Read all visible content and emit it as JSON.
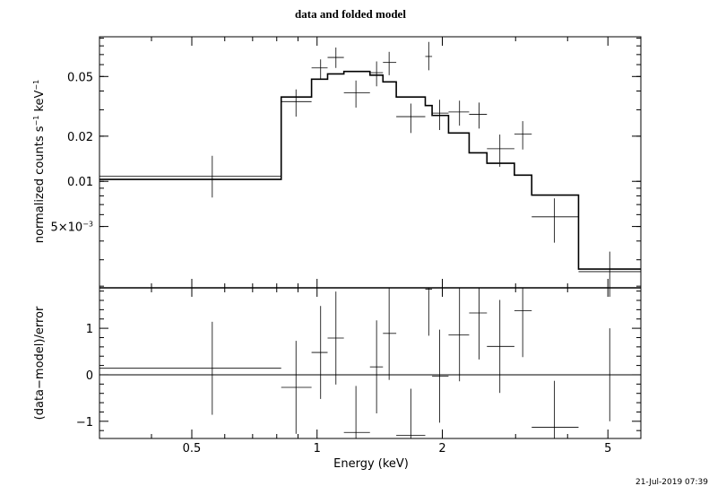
{
  "chart_data": {
    "type": "line",
    "title": "data and folded model",
    "timestamp": "21-Jul-2019 07:39",
    "xlabel": "Energy (keV)",
    "xscale": "log",
    "xlim": [
      0.3,
      6.0
    ],
    "x_ticks": [
      {
        "value": 0.5,
        "label": "0.5"
      },
      {
        "value": 1,
        "label": "1"
      },
      {
        "value": 2,
        "label": "2"
      },
      {
        "value": 5,
        "label": "5"
      }
    ],
    "top_panel": {
      "ylabel": "normalized counts s",
      "ylabel_sup1": "−1",
      "ylabel_mid": " keV",
      "ylabel_sup2": "−1",
      "yscale": "log",
      "ylim": [
        0.00195,
        0.092
      ],
      "y_ticks": [
        {
          "value": 0.005,
          "label": "5×10",
          "sup": "−3"
        },
        {
          "value": 0.01,
          "label": "0.01",
          "sup": ""
        },
        {
          "value": 0.02,
          "label": "0.02",
          "sup": ""
        },
        {
          "value": 0.05,
          "label": "0.05",
          "sup": ""
        }
      ],
      "data": [
        {
          "xlo": 0.3,
          "xhi": 0.82,
          "x": 0.56,
          "y": 0.0108,
          "ylo": 0.0078,
          "yhi": 0.0148
        },
        {
          "xlo": 0.82,
          "xhi": 0.97,
          "x": 0.89,
          "y": 0.034,
          "ylo": 0.027,
          "yhi": 0.041
        },
        {
          "xlo": 0.97,
          "xhi": 1.06,
          "x": 1.02,
          "y": 0.057,
          "ylo": 0.048,
          "yhi": 0.065
        },
        {
          "xlo": 1.06,
          "xhi": 1.16,
          "x": 1.11,
          "y": 0.067,
          "ylo": 0.057,
          "yhi": 0.078
        },
        {
          "xlo": 1.16,
          "xhi": 1.34,
          "x": 1.24,
          "y": 0.039,
          "ylo": 0.031,
          "yhi": 0.047
        },
        {
          "xlo": 1.34,
          "xhi": 1.44,
          "x": 1.39,
          "y": 0.053,
          "ylo": 0.043,
          "yhi": 0.063
        },
        {
          "xlo": 1.44,
          "xhi": 1.55,
          "x": 1.49,
          "y": 0.062,
          "ylo": 0.051,
          "yhi": 0.073
        },
        {
          "xlo": 1.55,
          "xhi": 1.82,
          "x": 1.68,
          "y": 0.027,
          "ylo": 0.021,
          "yhi": 0.033
        },
        {
          "xlo": 1.82,
          "xhi": 1.89,
          "x": 1.855,
          "y": 0.068,
          "ylo": 0.055,
          "yhi": 0.085
        },
        {
          "xlo": 1.89,
          "xhi": 2.07,
          "x": 1.97,
          "y": 0.0285,
          "ylo": 0.022,
          "yhi": 0.035
        },
        {
          "xlo": 2.07,
          "xhi": 2.32,
          "x": 2.2,
          "y": 0.029,
          "ylo": 0.0235,
          "yhi": 0.0345
        },
        {
          "xlo": 2.32,
          "xhi": 2.56,
          "x": 2.45,
          "y": 0.028,
          "ylo": 0.0225,
          "yhi": 0.0335
        },
        {
          "xlo": 2.56,
          "xhi": 2.98,
          "x": 2.75,
          "y": 0.0165,
          "ylo": 0.0125,
          "yhi": 0.0205
        },
        {
          "xlo": 2.98,
          "xhi": 3.28,
          "x": 3.12,
          "y": 0.0207,
          "ylo": 0.0163,
          "yhi": 0.0252
        },
        {
          "xlo": 3.28,
          "xhi": 4.25,
          "x": 3.72,
          "y": 0.0058,
          "ylo": 0.0039,
          "yhi": 0.0077
        },
        {
          "xlo": 4.25,
          "xhi": 6.0,
          "x": 5.05,
          "y": 0.0025,
          "ylo": 0.0017,
          "yhi": 0.0034
        }
      ],
      "model": [
        {
          "xlo": 0.3,
          "xhi": 0.82,
          "y": 0.0103
        },
        {
          "xlo": 0.82,
          "xhi": 0.97,
          "y": 0.0365
        },
        {
          "xlo": 0.97,
          "xhi": 1.06,
          "y": 0.048
        },
        {
          "xlo": 1.06,
          "xhi": 1.16,
          "y": 0.052
        },
        {
          "xlo": 1.16,
          "xhi": 1.34,
          "y": 0.054
        },
        {
          "xlo": 1.34,
          "xhi": 1.44,
          "y": 0.051
        },
        {
          "xlo": 1.44,
          "xhi": 1.55,
          "y": 0.046
        },
        {
          "xlo": 1.55,
          "xhi": 1.82,
          "y": 0.0365
        },
        {
          "xlo": 1.82,
          "xhi": 1.89,
          "y": 0.032
        },
        {
          "xlo": 1.89,
          "xhi": 2.07,
          "y": 0.0275
        },
        {
          "xlo": 2.07,
          "xhi": 2.32,
          "y": 0.021
        },
        {
          "xlo": 2.32,
          "xhi": 2.56,
          "y": 0.0155
        },
        {
          "xlo": 2.56,
          "xhi": 2.98,
          "y": 0.0132
        },
        {
          "xlo": 2.98,
          "xhi": 3.28,
          "y": 0.011
        },
        {
          "xlo": 3.28,
          "xhi": 4.25,
          "y": 0.0081
        },
        {
          "xlo": 4.25,
          "xhi": 6.0,
          "y": 0.0026
        }
      ]
    },
    "bottom_panel": {
      "ylabel": "(data−model)/error",
      "ylim": [
        -1.37,
        1.87
      ],
      "y_ticks": [
        {
          "value": -1,
          "label": "−1"
        },
        {
          "value": 0,
          "label": "0"
        },
        {
          "value": 1,
          "label": "1"
        }
      ],
      "zero_line": 0,
      "residuals": [
        {
          "xlo": 0.3,
          "xhi": 0.82,
          "x": 0.56,
          "y": 0.14,
          "err": 1.0
        },
        {
          "xlo": 0.82,
          "xhi": 0.97,
          "x": 0.89,
          "y": -0.27,
          "err": 1.0
        },
        {
          "xlo": 0.97,
          "xhi": 1.06,
          "x": 1.02,
          "y": 0.48,
          "err": 1.0
        },
        {
          "xlo": 1.06,
          "xhi": 1.16,
          "x": 1.11,
          "y": 0.79,
          "err": 1.0
        },
        {
          "xlo": 1.16,
          "xhi": 1.34,
          "x": 1.24,
          "y": -1.24,
          "err": 1.0
        },
        {
          "xlo": 1.34,
          "xhi": 1.44,
          "x": 1.39,
          "y": 0.17,
          "err": 1.0
        },
        {
          "xlo": 1.44,
          "xhi": 1.55,
          "x": 1.49,
          "y": 0.89,
          "err": 1.0
        },
        {
          "xlo": 1.55,
          "xhi": 1.82,
          "x": 1.68,
          "y": -1.3,
          "err": 1.0
        },
        {
          "xlo": 1.82,
          "xhi": 1.89,
          "x": 1.855,
          "y": 1.84,
          "err": 1.0
        },
        {
          "xlo": 1.89,
          "xhi": 2.07,
          "x": 1.97,
          "y": -0.03,
          "err": 1.0
        },
        {
          "xlo": 2.07,
          "xhi": 2.32,
          "x": 2.2,
          "y": 0.86,
          "err": 1.0
        },
        {
          "xlo": 2.32,
          "xhi": 2.56,
          "x": 2.45,
          "y": 1.33,
          "err": 1.0
        },
        {
          "xlo": 2.56,
          "xhi": 2.98,
          "x": 2.75,
          "y": 0.61,
          "err": 1.0
        },
        {
          "xlo": 2.98,
          "xhi": 3.28,
          "x": 3.12,
          "y": 1.38,
          "err": 1.0
        },
        {
          "xlo": 3.28,
          "xhi": 4.25,
          "x": 3.72,
          "y": -1.13,
          "err": 1.0
        },
        {
          "xlo": 4.25,
          "xhi": 6.0,
          "x": 5.05,
          "y": 0.0,
          "err": 1.0
        }
      ]
    }
  }
}
